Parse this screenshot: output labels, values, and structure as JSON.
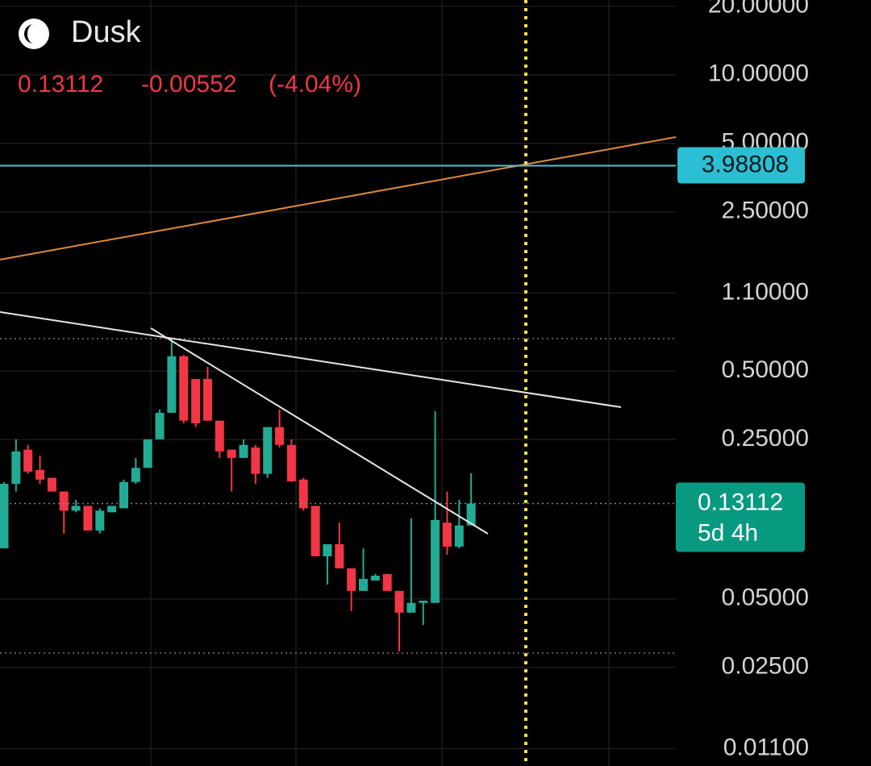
{
  "chart_data": {
    "type": "candlestick",
    "title": "Dusk",
    "last_price": 0.13112,
    "change": -0.00552,
    "change_percent_label": "(-4.04%)",
    "countdown": "5d 4h",
    "price_line": 3.98808,
    "log_scale": true,
    "grid": true,
    "up_color": "#22ab94",
    "down_color": "#f23645",
    "ylim": [
      0.00923,
      21.3
    ],
    "yticks": [
      {
        "value": 20,
        "label": "20.00000"
      },
      {
        "value": 10,
        "label": "10.00000"
      },
      {
        "value": 5,
        "label": "5.00000"
      },
      {
        "value": 2.5,
        "label": "2.50000"
      },
      {
        "value": 1.1,
        "label": "1.10000"
      },
      {
        "value": 0.5,
        "label": "0.50000"
      },
      {
        "value": 0.25,
        "label": "0.25000"
      },
      {
        "value": 0.05,
        "label": "0.05000"
      },
      {
        "value": 0.025,
        "label": "0.02500"
      },
      {
        "value": 0.011,
        "label": "0.01100"
      }
    ],
    "candles": [
      {
        "open": 0.0834,
        "high": 0.163,
        "low": 0.0834,
        "close": 0.16
      },
      {
        "open": 0.16,
        "high": 0.251,
        "low": 0.148,
        "close": 0.222
      },
      {
        "open": 0.226,
        "high": 0.237,
        "low": 0.177,
        "close": 0.181
      },
      {
        "open": 0.184,
        "high": 0.213,
        "low": 0.16,
        "close": 0.167
      },
      {
        "open": 0.17,
        "high": 0.17,
        "low": 0.148,
        "close": 0.148
      },
      {
        "open": 0.148,
        "high": 0.148,
        "low": 0.0966,
        "close": 0.122
      },
      {
        "open": 0.122,
        "high": 0.136,
        "low": 0.12,
        "close": 0.128
      },
      {
        "open": 0.128,
        "high": 0.128,
        "low": 0.0998,
        "close": 0.0998
      },
      {
        "open": 0.0998,
        "high": 0.125,
        "low": 0.0966,
        "close": 0.122
      },
      {
        "open": 0.12,
        "high": 0.128,
        "low": 0.12,
        "close": 0.128
      },
      {
        "open": 0.125,
        "high": 0.167,
        "low": 0.125,
        "close": 0.163
      },
      {
        "open": 0.163,
        "high": 0.208,
        "low": 0.16,
        "close": 0.188
      },
      {
        "open": 0.188,
        "high": 0.251,
        "low": 0.188,
        "close": 0.251
      },
      {
        "open": 0.251,
        "high": 0.339,
        "low": 0.251,
        "close": 0.328
      },
      {
        "open": 0.328,
        "high": 0.695,
        "low": 0.328,
        "close": 0.581
      },
      {
        "open": 0.581,
        "high": 0.59,
        "low": 0.295,
        "close": 0.303
      },
      {
        "open": 0.462,
        "high": 0.462,
        "low": 0.284,
        "close": 0.295
      },
      {
        "open": 0.462,
        "high": 0.522,
        "low": 0.303,
        "close": 0.303
      },
      {
        "open": 0.303,
        "high": 0.303,
        "low": 0.208,
        "close": 0.222
      },
      {
        "open": 0.226,
        "high": 0.226,
        "low": 0.148,
        "close": 0.208
      },
      {
        "open": 0.208,
        "high": 0.251,
        "low": 0.208,
        "close": 0.237
      },
      {
        "open": 0.231,
        "high": 0.237,
        "low": 0.16,
        "close": 0.177
      },
      {
        "open": 0.177,
        "high": 0.284,
        "low": 0.17,
        "close": 0.284
      },
      {
        "open": 0.284,
        "high": 0.339,
        "low": 0.231,
        "close": 0.237
      },
      {
        "open": 0.237,
        "high": 0.251,
        "low": 0.163,
        "close": 0.164
      },
      {
        "open": 0.167,
        "high": 0.17,
        "low": 0.122,
        "close": 0.125
      },
      {
        "open": 0.128,
        "high": 0.128,
        "low": 0.0769,
        "close": 0.0769
      },
      {
        "open": 0.0769,
        "high": 0.0869,
        "low": 0.0578,
        "close": 0.0869
      },
      {
        "open": 0.0869,
        "high": 0.108,
        "low": 0.0681,
        "close": 0.0681
      },
      {
        "open": 0.0681,
        "high": 0.0681,
        "low": 0.0442,
        "close": 0.0542
      },
      {
        "open": 0.0542,
        "high": 0.0834,
        "low": 0.0542,
        "close": 0.0612
      },
      {
        "open": 0.0602,
        "high": 0.0643,
        "low": 0.0602,
        "close": 0.0632
      },
      {
        "open": 0.0643,
        "high": 0.0643,
        "low": 0.0542,
        "close": 0.0542
      },
      {
        "open": 0.0542,
        "high": 0.0542,
        "low": 0.0294,
        "close": 0.0435
      },
      {
        "open": 0.0435,
        "high": 0.113,
        "low": 0.0435,
        "close": 0.048
      },
      {
        "open": 0.048,
        "high": 0.0491,
        "low": 0.0384,
        "close": 0.0491
      },
      {
        "open": 0.048,
        "high": 0.333,
        "low": 0.048,
        "close": 0.111
      },
      {
        "open": 0.108,
        "high": 0.148,
        "low": 0.0782,
        "close": 0.0848
      },
      {
        "open": 0.0848,
        "high": 0.136,
        "low": 0.0834,
        "close": 0.105
      },
      {
        "open": 0.105,
        "high": 0.178,
        "low": 0.105,
        "close": 0.13112
      }
    ]
  }
}
